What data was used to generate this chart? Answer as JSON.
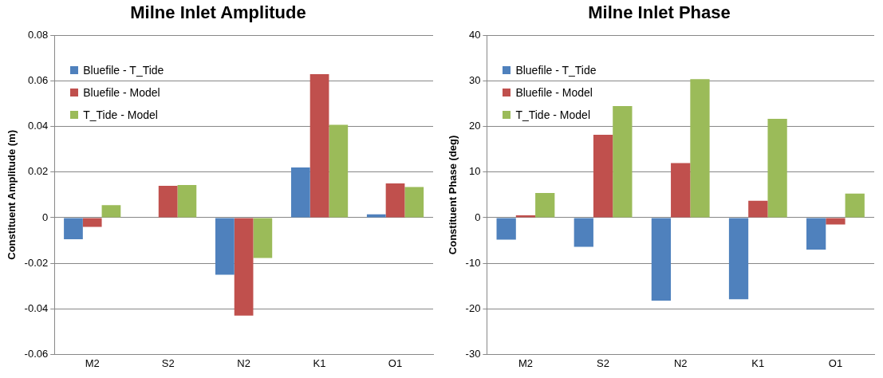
{
  "chart_data": [
    {
      "type": "bar",
      "title": "Milne Inlet Amplitude",
      "ylabel": "Constituent Amplitude (m)",
      "categories": [
        "M2",
        "S2",
        "N2",
        "K1",
        "O1"
      ],
      "ylim": [
        -0.06,
        0.08
      ],
      "yticks": [
        {
          "value": -0.06,
          "label": "-0.06"
        },
        {
          "value": -0.04,
          "label": "-0.04"
        },
        {
          "value": -0.02,
          "label": "-0.02"
        },
        {
          "value": 0,
          "label": "0"
        },
        {
          "value": 0.02,
          "label": "0.02"
        },
        {
          "value": 0.04,
          "label": "0.04"
        },
        {
          "value": 0.06,
          "label": "0.06"
        },
        {
          "value": 0.08,
          "label": "0.08"
        }
      ],
      "grid": "y",
      "legend": "top left",
      "series": [
        {
          "name": "Bluefile - T_Tide",
          "color": "#4f81bd",
          "values": [
            -0.0095,
            0,
            -0.025,
            0.022,
            0.0015
          ]
        },
        {
          "name": "Bluefile - Model",
          "color": "#c0504d",
          "values": [
            -0.004,
            0.014,
            -0.043,
            0.063,
            0.015
          ]
        },
        {
          "name": "T_Tide - Model",
          "color": "#9bbb59",
          "values": [
            0.0055,
            0.0143,
            -0.0177,
            0.0408,
            0.0135
          ]
        }
      ]
    },
    {
      "type": "bar",
      "title": "Milne Inlet Phase",
      "ylabel": "Constituent Phase (deg)",
      "categories": [
        "M2",
        "S2",
        "N2",
        "K1",
        "O1"
      ],
      "ylim": [
        -30,
        40
      ],
      "yticks": [
        -30,
        -20,
        -10,
        0,
        10,
        20,
        30,
        40
      ],
      "grid": "y",
      "legend": "top left",
      "series": [
        {
          "name": "Bluefile - T_Tide",
          "color": "#4f81bd",
          "values": [
            -4.8,
            -6.4,
            -18.2,
            -17.9,
            -7.0
          ]
        },
        {
          "name": "Bluefile - Model",
          "color": "#c0504d",
          "values": [
            0.5,
            18.2,
            12.0,
            3.7,
            -1.5
          ]
        },
        {
          "name": "T_Tide - Model",
          "color": "#9bbb59",
          "values": [
            5.4,
            24.5,
            30.4,
            21.7,
            5.3
          ]
        }
      ]
    }
  ]
}
